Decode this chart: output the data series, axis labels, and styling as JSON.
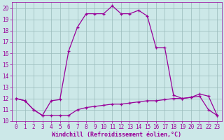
{
  "xlabel": "Windchill (Refroidissement éolien,°C)",
  "x": [
    0,
    1,
    2,
    3,
    4,
    5,
    6,
    7,
    8,
    9,
    10,
    11,
    12,
    13,
    14,
    15,
    16,
    17,
    18,
    19,
    20,
    21,
    22,
    23
  ],
  "temp_curve": [
    12.0,
    11.8,
    11.0,
    10.5,
    11.8,
    11.9,
    16.2,
    18.3,
    19.5,
    19.5,
    19.5,
    20.2,
    19.5,
    19.5,
    19.8,
    19.3,
    16.5,
    16.5,
    12.3,
    12.0,
    12.1,
    12.2,
    11.0,
    10.5
  ],
  "wind_curve": [
    12.0,
    11.8,
    11.0,
    10.5,
    10.5,
    10.5,
    10.5,
    11.0,
    11.2,
    11.3,
    11.4,
    11.5,
    11.5,
    11.6,
    11.7,
    11.8,
    11.8,
    11.9,
    12.0,
    12.0,
    12.1,
    12.4,
    12.2,
    10.5
  ],
  "line_color": "#990099",
  "bg_color": "#cce8e8",
  "grid_color": "#99bbbb",
  "ylim_min": 10,
  "ylim_max": 20,
  "xlim_min": 0,
  "xlim_max": 23,
  "yticks": [
    10,
    11,
    12,
    13,
    14,
    15,
    16,
    17,
    18,
    19,
    20
  ],
  "xticks": [
    0,
    1,
    2,
    3,
    4,
    5,
    6,
    7,
    8,
    9,
    10,
    11,
    12,
    13,
    14,
    15,
    16,
    17,
    18,
    19,
    20,
    21,
    22,
    23
  ],
  "xlabel_fontsize": 6.0,
  "tick_fontsize": 5.5
}
